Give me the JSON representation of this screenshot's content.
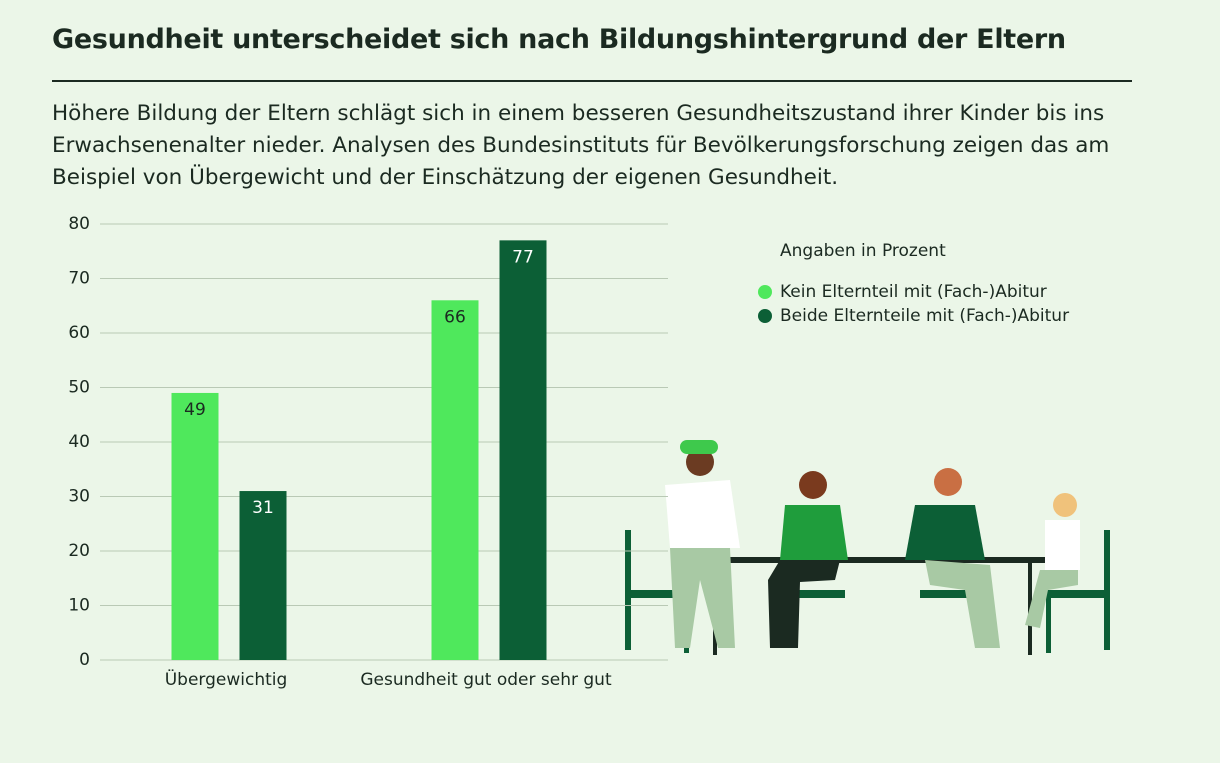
{
  "chart_data": {
    "type": "bar",
    "title": "Gesundheit unterscheidet sich nach Bildungshintergrund der Eltern",
    "subtitle": "Höhere Bildung der Eltern schlägt sich in einem besseren Gesundheitszustand ihrer Kinder bis ins Erwachsenenalter nieder. Analysen des Bundesinstituts für Bevölkerungsforschung zeigen das am Beispiel von Übergewicht und der Einschätzung der eigenen Gesundheit.",
    "legend_title": "Angaben in Prozent",
    "categories": [
      "Übergewichtig",
      "Gesundheit gut oder sehr gut"
    ],
    "series": [
      {
        "name": "Kein Elternteil mit (Fach-)Abitur",
        "color": "#4fe85c",
        "values": [
          49,
          66
        ]
      },
      {
        "name": "Beide Elternteile mit (Fach-)Abitur",
        "color": "#0c5f36",
        "values": [
          31,
          77
        ]
      }
    ],
    "ylim": [
      0,
      80
    ],
    "yticks": [
      0,
      10,
      20,
      30,
      40,
      50,
      60,
      70,
      80
    ],
    "grid": true
  }
}
